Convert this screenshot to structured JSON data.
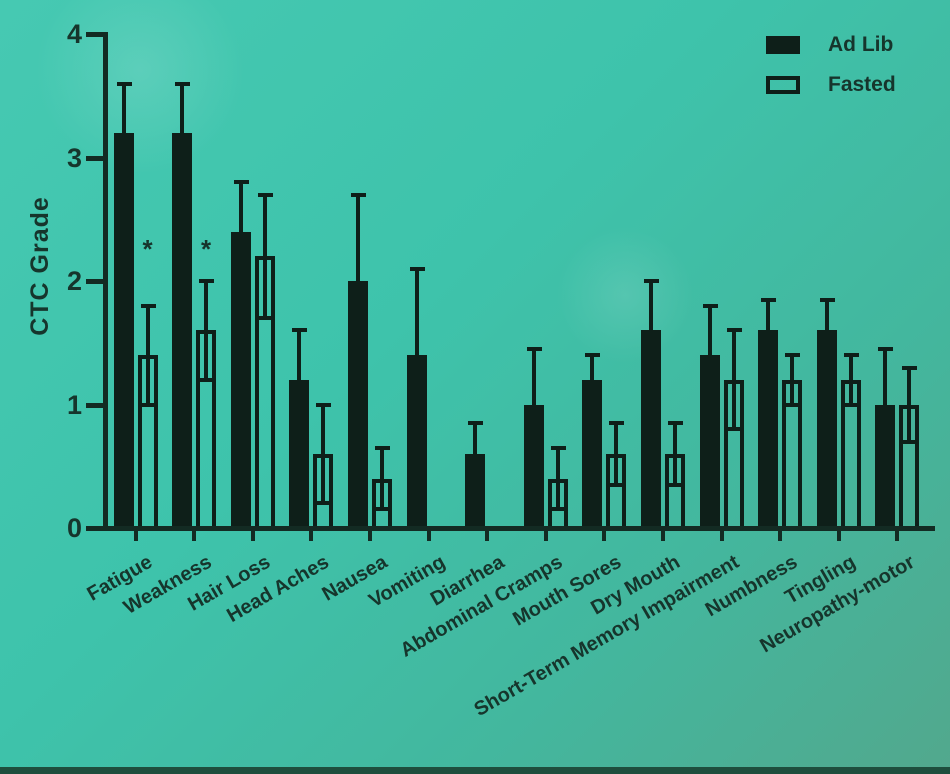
{
  "colors": {
    "ink_bars": "#0e1f19",
    "ink_axis": "#132b23",
    "ink_text": "#16352c",
    "background_teal": "#3ec3ab",
    "background_bottom_right": "#52a88d",
    "bottom_strip": "#1e4e3d"
  },
  "chart_data": {
    "type": "bar",
    "title": "",
    "ylabel": "CTC Grade",
    "xlabel": "",
    "ylim": [
      0,
      4
    ],
    "yticks": [
      0,
      1,
      2,
      3,
      4
    ],
    "grid": false,
    "legend_position": "top-right",
    "categories": [
      "Fatigue",
      "Weakness",
      "Hair Loss",
      "Head Aches",
      "Nausea",
      "Vomiting",
      "Diarrhea",
      "Abdominal Cramps",
      "Mouth Sores",
      "Dry Mouth",
      "Short-Term Memory Impairment",
      "Numbness",
      "Tingling",
      "Neuropathy-motor"
    ],
    "series": [
      {
        "name": "Ad Lib",
        "fill": "filled",
        "values": [
          3.2,
          3.2,
          2.4,
          1.2,
          2.0,
          1.4,
          0.6,
          1.0,
          1.2,
          1.6,
          1.4,
          1.6,
          1.6,
          1.0
        ],
        "errors": [
          0.4,
          0.4,
          0.4,
          0.4,
          0.7,
          0.7,
          0.25,
          0.45,
          0.2,
          0.4,
          0.4,
          0.25,
          0.25,
          0.45
        ]
      },
      {
        "name": "Fasted",
        "fill": "open",
        "values": [
          1.4,
          1.6,
          2.2,
          0.6,
          0.4,
          null,
          null,
          0.4,
          0.6,
          0.6,
          1.2,
          1.2,
          1.2,
          1.0
        ],
        "errors": [
          0.4,
          0.4,
          0.5,
          0.4,
          0.25,
          null,
          null,
          0.25,
          0.25,
          0.25,
          0.4,
          0.2,
          0.2,
          0.3
        ]
      }
    ],
    "significance_markers": [
      {
        "category": "Fatigue",
        "series": "Fasted",
        "marker": "*",
        "grade": 2.3
      },
      {
        "category": "Weakness",
        "series": "Fasted",
        "marker": "*",
        "grade": 2.3
      }
    ]
  }
}
